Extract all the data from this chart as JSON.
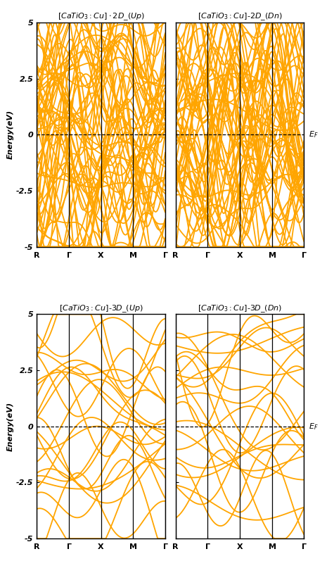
{
  "band_color": "#FFA500",
  "fermi_color": "black",
  "line_width": 1.3,
  "ylabel": "Energy(eV)",
  "background_color": "white",
  "num_kpoints": 120,
  "n_bands_2d": 60,
  "n_bands_3d": 22,
  "ylim": [
    -5,
    5
  ],
  "yticks": [
    -5,
    -2.5,
    0,
    2.5,
    5
  ],
  "ytick_labels": [
    "-5",
    "-2.5",
    "0",
    "2.5",
    "5"
  ]
}
